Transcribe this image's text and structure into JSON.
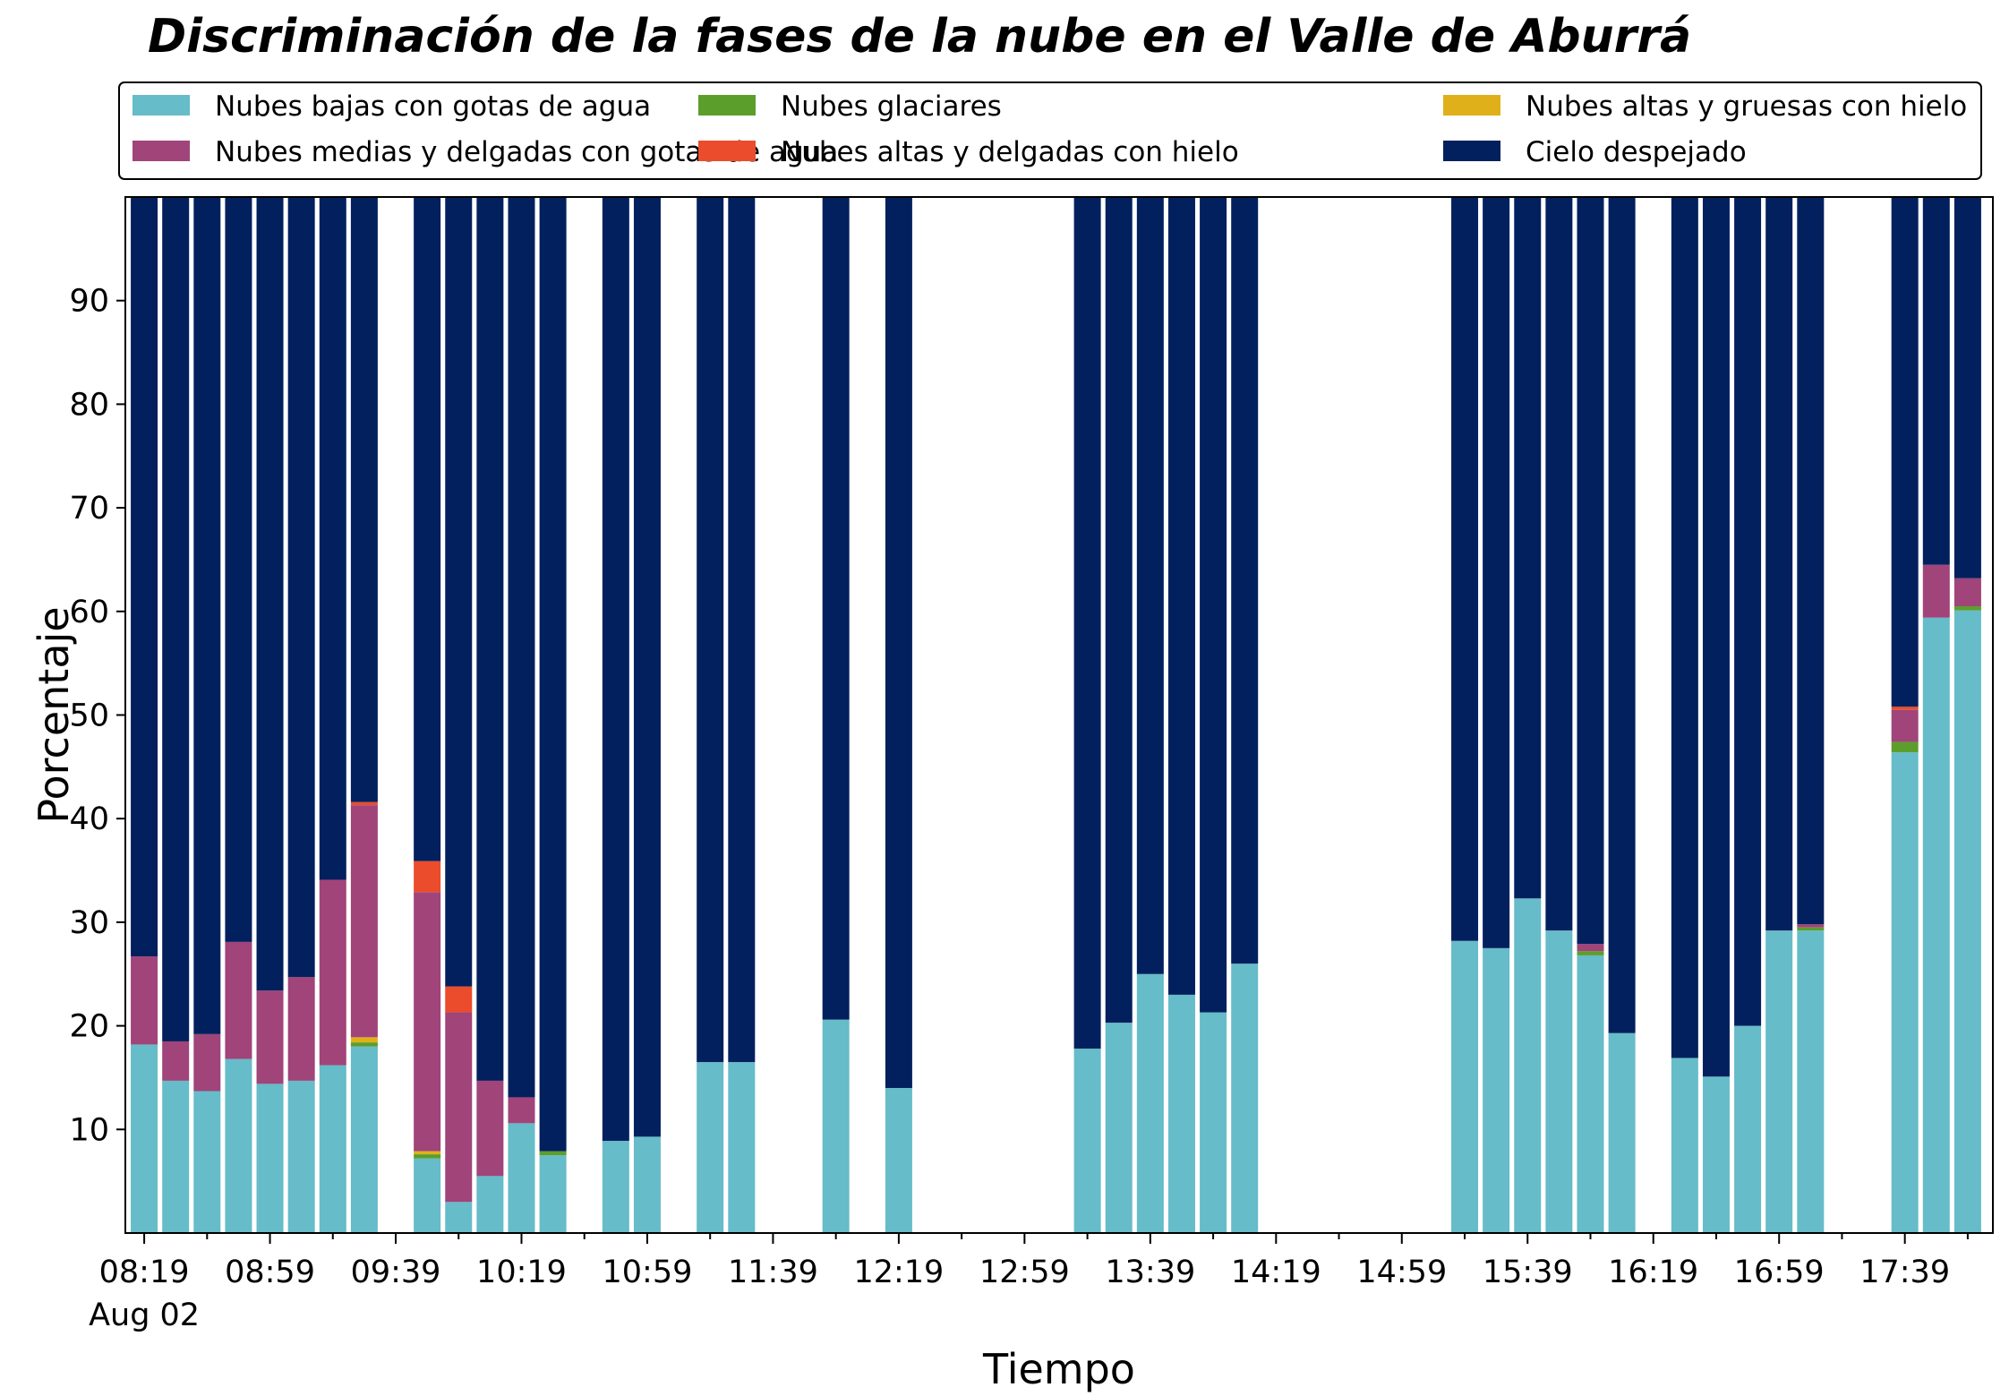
{
  "chart_data": {
    "type": "bar",
    "stacked": true,
    "title": "Discriminación de la fases de la nube en el Valle de Aburrá",
    "xlabel": "Tiempo",
    "ylabel": "Porcentaje",
    "ylim": [
      0,
      100
    ],
    "yticks": [
      10,
      20,
      30,
      40,
      50,
      60,
      70,
      80,
      90
    ],
    "x_start": "08:13",
    "x_end": "18:07",
    "x_tick_labels": [
      "08:19",
      "08:59",
      "09:39",
      "10:19",
      "10:59",
      "11:39",
      "12:19",
      "12:59",
      "13:39",
      "14:19",
      "14:59",
      "15:39",
      "16:19",
      "16:59",
      "17:39"
    ],
    "x_date_label": "Aug 02",
    "legend_position": "top, 3 columns",
    "grid": false,
    "x": [
      "08:19",
      "08:29",
      "08:39",
      "08:49",
      "08:59",
      "09:09",
      "09:19",
      "09:29",
      "09:49",
      "09:59",
      "10:09",
      "10:19",
      "10:29",
      "10:49",
      "10:59",
      "11:19",
      "11:29",
      "11:59",
      "12:19",
      "13:19",
      "13:29",
      "13:39",
      "13:49",
      "13:59",
      "14:09",
      "15:19",
      "15:29",
      "15:39",
      "15:49",
      "15:59",
      "16:09",
      "16:29",
      "16:39",
      "16:49",
      "16:59",
      "17:09",
      "17:39",
      "17:49",
      "17:59"
    ],
    "series": [
      {
        "name": "Nubes bajas con gotas de agua",
        "color": "#66bcc8",
        "values": [
          18.2,
          14.7,
          13.7,
          16.8,
          14.4,
          14.7,
          16.2,
          18.0,
          7.2,
          3.0,
          5.5,
          10.6,
          7.5,
          8.9,
          9.3,
          16.5,
          16.5,
          20.6,
          14.0,
          17.8,
          20.3,
          25.0,
          23.0,
          21.3,
          26.0,
          28.2,
          27.5,
          32.3,
          29.2,
          26.8,
          19.3,
          16.9,
          15.1,
          20.0,
          29.2,
          29.2,
          46.4,
          59.4,
          60.1
        ]
      },
      {
        "name": "Nubes glaciares",
        "color": "#5c9e2c",
        "values": [
          0,
          0,
          0,
          0,
          0,
          0,
          0,
          0.4,
          0.4,
          0,
          0,
          0,
          0.4,
          0,
          0,
          0,
          0,
          0,
          0,
          0,
          0,
          0,
          0,
          0,
          0,
          0,
          0,
          0,
          0,
          0.4,
          0,
          0,
          0,
          0,
          0,
          0.3,
          1.0,
          0,
          0.4
        ]
      },
      {
        "name": "Nubes altas y gruesas con hielo",
        "color": "#e0b01b",
        "values": [
          0,
          0,
          0,
          0,
          0,
          0,
          0,
          0.5,
          0.3,
          0,
          0,
          0,
          0,
          0,
          0,
          0,
          0,
          0,
          0,
          0,
          0,
          0,
          0,
          0,
          0,
          0,
          0,
          0,
          0,
          0,
          0,
          0,
          0,
          0,
          0,
          0,
          0,
          0,
          0
        ]
      },
      {
        "name": "Nubes medias y delgadas con gotas de agua",
        "color": "#a0447a",
        "values": [
          8.5,
          3.8,
          5.5,
          11.3,
          9.0,
          10.0,
          17.9,
          22.4,
          25.0,
          18.3,
          9.2,
          2.5,
          0,
          0,
          0,
          0,
          0,
          0,
          0,
          0,
          0,
          0,
          0,
          0,
          0,
          0,
          0,
          0,
          0,
          0.7,
          0,
          0,
          0,
          0,
          0,
          0.3,
          3.1,
          5.1,
          2.7
        ]
      },
      {
        "name": "Nubes altas y delgadas con hielo",
        "color": "#eb4c2c",
        "values": [
          0,
          0,
          0,
          0,
          0,
          0,
          0,
          0.3,
          3.0,
          2.5,
          0,
          0,
          0,
          0,
          0,
          0,
          0,
          0,
          0,
          0,
          0,
          0,
          0,
          0,
          0,
          0,
          0,
          0,
          0,
          0,
          0,
          0,
          0,
          0,
          0,
          0,
          0.3,
          0,
          0
        ]
      },
      {
        "name": "Cielo despejado",
        "color": "#03205e",
        "values": [
          73.3,
          81.5,
          80.8,
          71.9,
          76.6,
          75.3,
          65.9,
          58.4,
          64.1,
          76.2,
          85.3,
          86.9,
          92.1,
          91.1,
          90.7,
          83.5,
          83.5,
          79.4,
          86.0,
          82.2,
          79.7,
          75.0,
          77.0,
          78.7,
          74.0,
          71.8,
          72.5,
          67.7,
          70.8,
          72.1,
          80.7,
          83.1,
          84.9,
          80.0,
          70.8,
          70.2,
          49.2,
          35.5,
          36.8
        ]
      }
    ]
  }
}
